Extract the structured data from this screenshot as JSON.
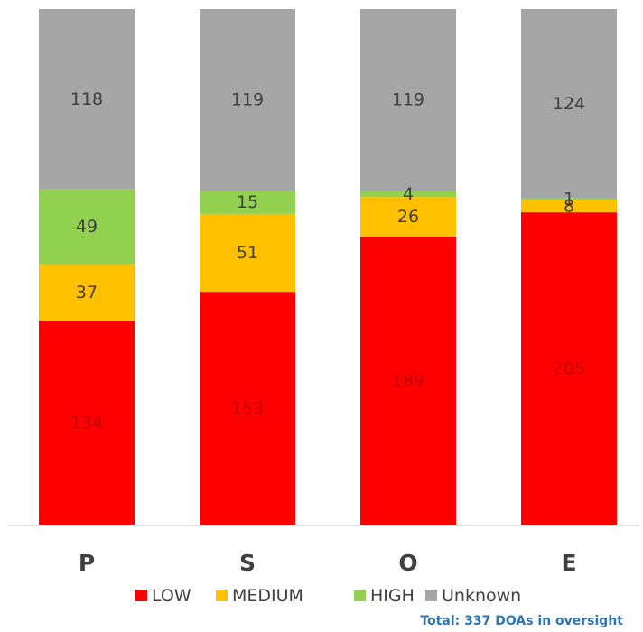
{
  "chart_data": {
    "type": "bar",
    "stacked": true,
    "title": "",
    "xlabel": "",
    "ylabel": "",
    "categories": [
      "P",
      "S",
      "O",
      "E"
    ],
    "series": [
      {
        "name": "LOW",
        "color": "#ff0000",
        "values": [
          134,
          153,
          189,
          205
        ]
      },
      {
        "name": "MEDIUM",
        "color": "#ffc000",
        "values": [
          37,
          51,
          26,
          8
        ]
      },
      {
        "name": "HIGH",
        "color": "#92d050",
        "values": [
          49,
          15,
          4,
          1
        ]
      },
      {
        "name": "Unknown",
        "color": "#a6a6a6",
        "values": [
          118,
          119,
          119,
          124
        ]
      }
    ],
    "ylim": [
      0,
      338
    ],
    "grid": false,
    "y_axis_visible": false,
    "legend_position": "bottom",
    "annotation": "Total: 337 DOAs in oversight",
    "annotation_color": "#2e75b6",
    "label_colors": {
      "LOW": "#c00000",
      "MEDIUM": "#404040",
      "HIGH": "#404040",
      "Unknown": "#404040"
    }
  }
}
